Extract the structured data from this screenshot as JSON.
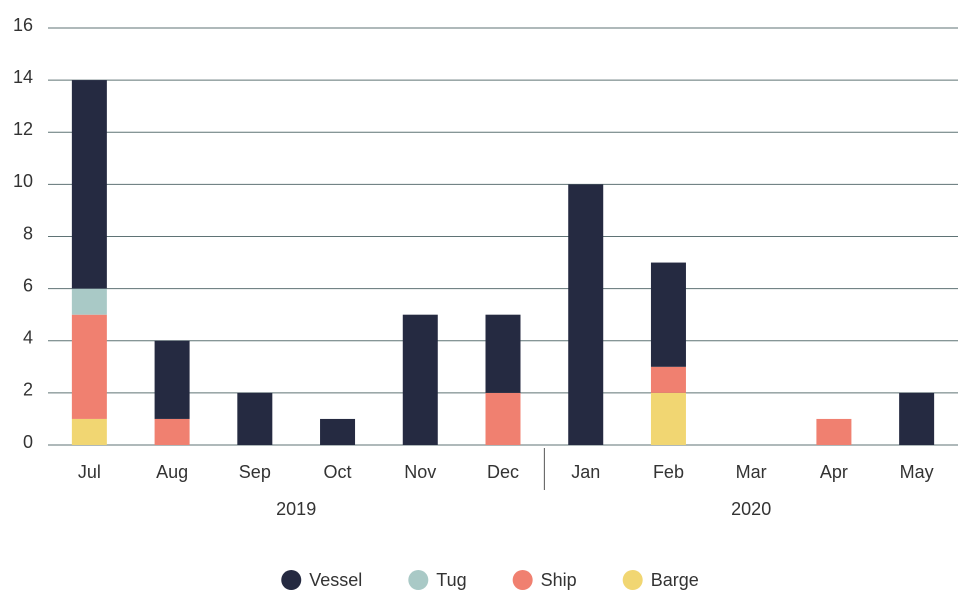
{
  "chart_data": {
    "type": "stacked_bar",
    "groups": [
      {
        "label": "2019",
        "categories": [
          "Jul",
          "Aug",
          "Sep",
          "Oct",
          "Nov",
          "Dec"
        ]
      },
      {
        "label": "2020",
        "categories": [
          "Jan",
          "Feb",
          "Mar",
          "Apr",
          "May"
        ]
      }
    ],
    "series": [
      {
        "name": "Vessel",
        "color": "#252a41",
        "values": [
          8,
          3,
          2,
          1,
          5,
          3,
          10,
          4,
          0,
          0,
          2
        ]
      },
      {
        "name": "Tug",
        "color": "#a9c9c6",
        "values": [
          1,
          0,
          0,
          0,
          0,
          0,
          0,
          0,
          0,
          0,
          0
        ]
      },
      {
        "name": "Ship",
        "color": "#f08070",
        "values": [
          4,
          1,
          0,
          0,
          0,
          2,
          0,
          1,
          0,
          1,
          0
        ]
      },
      {
        "name": "Barge",
        "color": "#f1d672",
        "values": [
          1,
          0,
          0,
          0,
          0,
          0,
          0,
          2,
          0,
          0,
          0
        ]
      }
    ],
    "ylim": [
      0,
      16
    ],
    "yticks": [
      0,
      2,
      4,
      6,
      8,
      10,
      12,
      14,
      16
    ],
    "grid": true,
    "legend": "bottom"
  }
}
